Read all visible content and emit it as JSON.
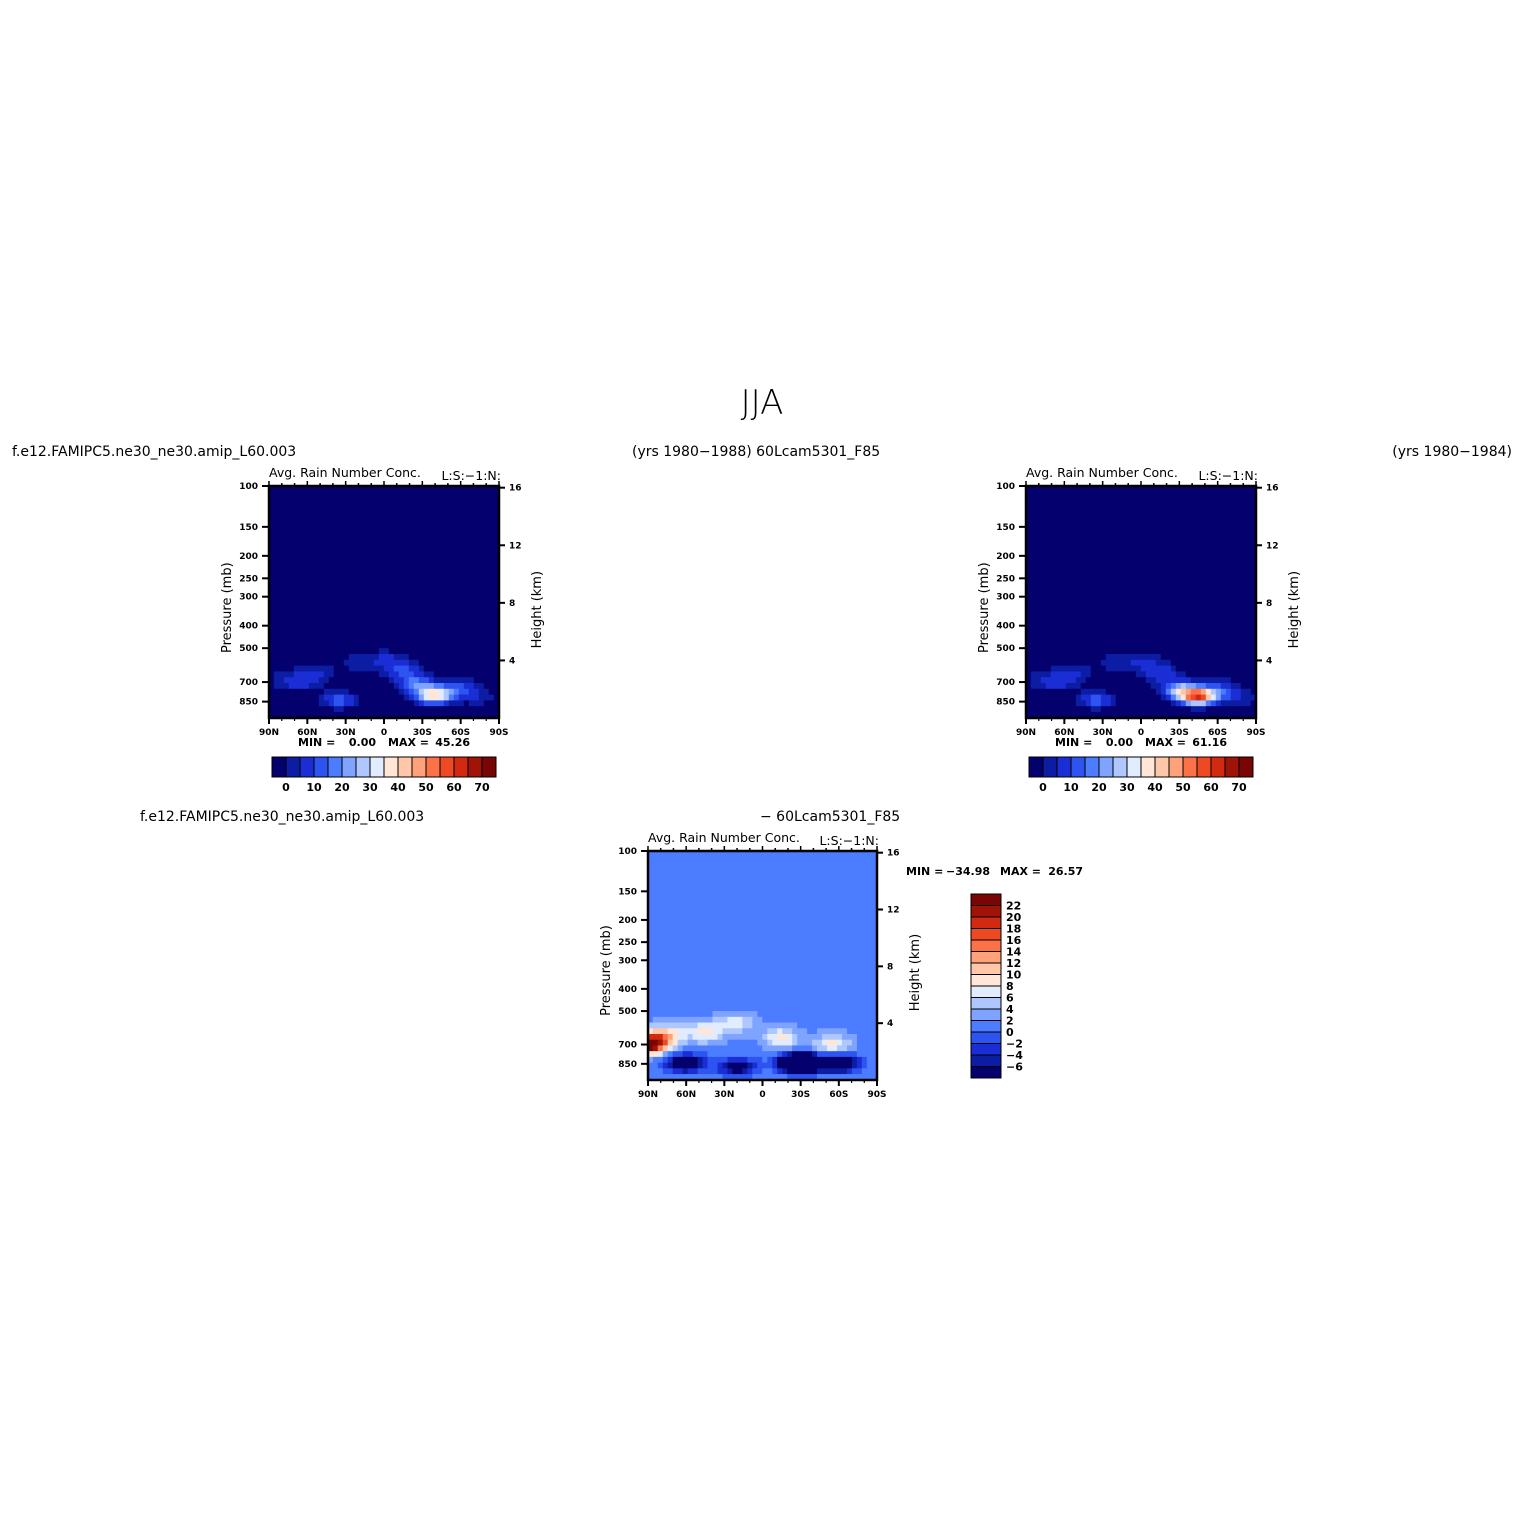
{
  "figure": {
    "title": "JJA",
    "header_left": "f.e12.FAMIPC5.ne30_ne30.amip_L60.003",
    "header_mid": "(yrs 1980−1988)  60Lcam5301_F85",
    "header_right": "(yrs 1980−1984)",
    "diff_case_left": "f.e12.FAMIPC5.ne30_ne30.amip_L60.003",
    "diff_case_right": "− 60Lcam5301_F85"
  },
  "colors": {
    "abs_palette": [
      "#04006e",
      "#0c1ca3",
      "#1b2ed6",
      "#2d54f0",
      "#4c7cff",
      "#7fa4ff",
      "#aec8ff",
      "#e1ecff",
      "#ffe6d6",
      "#ffc7a8",
      "#ffa27a",
      "#fb7148",
      "#ed4a24",
      "#d22a10",
      "#a01408",
      "#7a0505"
    ],
    "diff_palette": [
      "#04006e",
      "#0c1ca3",
      "#1b2ed6",
      "#2d54f0",
      "#4c7cff",
      "#7fa4ff",
      "#aec8ff",
      "#e1ecff",
      "#ffe6d6",
      "#ffc7a8",
      "#ffa27a",
      "#fb7148",
      "#ed4a24",
      "#d22a10",
      "#a01408",
      "#7a0505"
    ]
  },
  "chart_data": [
    {
      "type": "heatmap",
      "title": "Avg. Rain Number Conc.",
      "title_right": "L:S:−1:N:",
      "xlabel": "",
      "ylabel": "Pressure (mb)",
      "ylabel_right": "Height (km)",
      "x_ticks": [
        "90N",
        "60N",
        "30N",
        "0",
        "30S",
        "60S",
        "90S"
      ],
      "y_ticks": [
        100,
        150,
        200,
        250,
        300,
        400,
        500,
        700,
        850
      ],
      "y_right_ticks": [
        4,
        8,
        12,
        16
      ],
      "ylim": [
        100,
        1000
      ],
      "min_label": "MIN =",
      "min_value": "0.00",
      "max_label": "MAX =",
      "max_value": "45.26",
      "colorbar_labels": [
        "0",
        "10",
        "20",
        "30",
        "40",
        "50",
        "60",
        "70"
      ],
      "background_level": 0.5,
      "features": [
        {
          "lat": 75,
          "p": 690,
          "value": 10
        },
        {
          "lat": 60,
          "p": 700,
          "value": 8
        },
        {
          "lat": 50,
          "p": 640,
          "value": 8
        },
        {
          "lat": 20,
          "p": 580,
          "value": 7
        },
        {
          "lat": 0,
          "p": 560,
          "value": 9
        },
        {
          "lat": -15,
          "p": 620,
          "value": 14
        },
        {
          "lat": -25,
          "p": 720,
          "value": 20
        },
        {
          "lat": -40,
          "p": 800,
          "value": 45.26
        },
        {
          "lat": 35,
          "p": 840,
          "value": 18
        },
        {
          "lat": -60,
          "p": 750,
          "value": 15
        },
        {
          "lat": -75,
          "p": 820,
          "value": 8
        },
        {
          "lat": 30,
          "p": 700,
          "value": 0.2
        }
      ]
    },
    {
      "type": "heatmap",
      "title": "Avg. Rain Number Conc.",
      "title_right": "L:S:−1:N:",
      "xlabel": "",
      "ylabel": "Pressure (mb)",
      "ylabel_right": "Height (km)",
      "x_ticks": [
        "90N",
        "60N",
        "30N",
        "0",
        "30S",
        "60S",
        "90S"
      ],
      "y_ticks": [
        100,
        150,
        200,
        250,
        300,
        400,
        500,
        700,
        850
      ],
      "y_right_ticks": [
        4,
        8,
        12,
        16
      ],
      "ylim": [
        100,
        1000
      ],
      "min_label": "MIN =",
      "min_value": "0.00",
      "max_label": "MAX =",
      "max_value": "61.16",
      "colorbar_labels": [
        "0",
        "10",
        "20",
        "30",
        "40",
        "50",
        "60",
        "70"
      ],
      "background_level": 0.5,
      "features": [
        {
          "lat": 75,
          "p": 690,
          "value": 10
        },
        {
          "lat": 60,
          "p": 700,
          "value": 8
        },
        {
          "lat": 50,
          "p": 640,
          "value": 8
        },
        {
          "lat": 20,
          "p": 580,
          "value": 7
        },
        {
          "lat": 0,
          "p": 560,
          "value": 9
        },
        {
          "lat": -15,
          "p": 640,
          "value": 14
        },
        {
          "lat": -30,
          "p": 760,
          "value": 28
        },
        {
          "lat": -45,
          "p": 810,
          "value": 61.16
        },
        {
          "lat": 35,
          "p": 840,
          "value": 18
        },
        {
          "lat": -65,
          "p": 760,
          "value": 14
        },
        {
          "lat": -78,
          "p": 830,
          "value": 8
        },
        {
          "lat": 30,
          "p": 700,
          "value": 0.2
        }
      ]
    },
    {
      "type": "heatmap",
      "title": "Avg. Rain Number Conc.",
      "title_right": "L:S:−1:N:",
      "xlabel": "",
      "ylabel": "Pressure (mb)",
      "ylabel_right": "Height (km)",
      "x_ticks": [
        "90N",
        "60N",
        "30N",
        "0",
        "30S",
        "60S",
        "90S"
      ],
      "y_ticks": [
        100,
        150,
        200,
        250,
        300,
        400,
        500,
        700,
        850
      ],
      "y_right_ticks": [
        4,
        8,
        12,
        16
      ],
      "ylim": [
        100,
        1000
      ],
      "min_label": "MIN =",
      "min_value": "−34.98",
      "max_label": "MAX =",
      "max_value": "26.57",
      "colorbar_labels": [
        "22",
        "20",
        "18",
        "16",
        "14",
        "12",
        "10",
        "8",
        "6",
        "4",
        "2",
        "0",
        "−2",
        "−4",
        "−6"
      ],
      "background_level": 1,
      "features": [
        {
          "lat": 90,
          "p": 700,
          "value": 26.57
        },
        {
          "lat": 75,
          "p": 640,
          "value": 10
        },
        {
          "lat": 45,
          "p": 620,
          "value": 9
        },
        {
          "lat": 20,
          "p": 560,
          "value": 7
        },
        {
          "lat": -15,
          "p": 660,
          "value": 9
        },
        {
          "lat": -55,
          "p": 700,
          "value": 9
        },
        {
          "lat": 60,
          "p": 850,
          "value": -12
        },
        {
          "lat": 20,
          "p": 880,
          "value": -9
        },
        {
          "lat": -30,
          "p": 850,
          "value": -34.98
        },
        {
          "lat": -60,
          "p": 850,
          "value": -14
        }
      ]
    }
  ]
}
